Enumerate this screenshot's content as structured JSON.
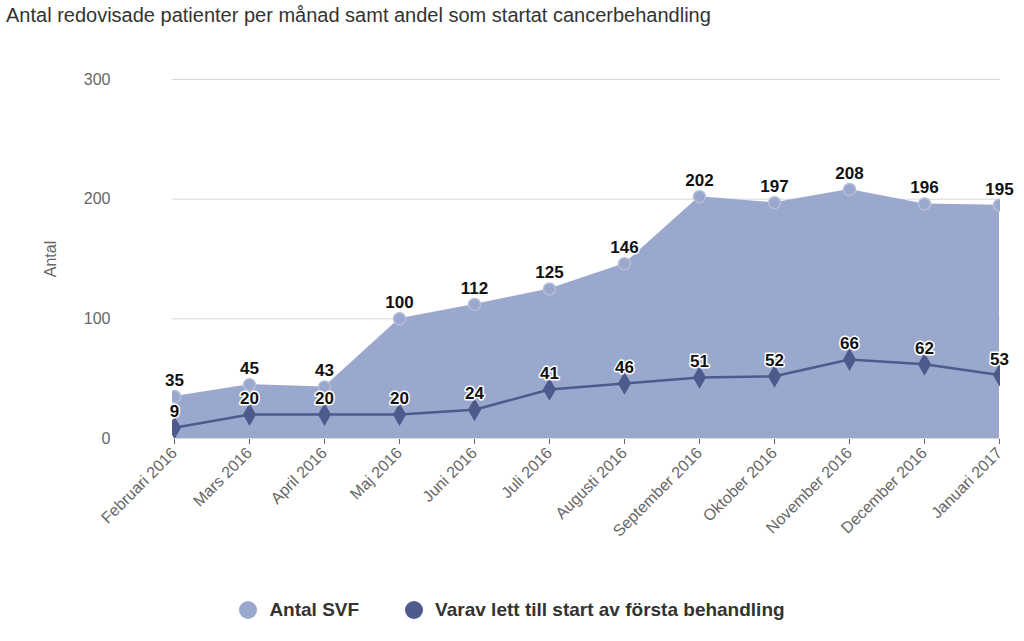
{
  "chart_data": {
    "type": "area",
    "title": "Antal redovisade patienter per månad samt andel som startat cancerbehandling",
    "y_label": "Antal",
    "categories": [
      "Februari 2016",
      "Mars 2016",
      "April 2016",
      "Maj 2016",
      "Juni 2016",
      "Juli 2016",
      "Augusti 2016",
      "September 2016",
      "Oktober 2016",
      "November 2016",
      "December 2016",
      "Januari 2017"
    ],
    "series": [
      {
        "name": "Antal SVF",
        "type": "area",
        "color": "#9ba8cd",
        "marker": "circle",
        "values": [
          35,
          45,
          43,
          100,
          112,
          125,
          146,
          202,
          197,
          208,
          196,
          195
        ]
      },
      {
        "name": "Varav lett till start av första behandling",
        "type": "line",
        "color": "#4f5a8c",
        "marker": "diamond",
        "values": [
          9,
          20,
          20,
          20,
          24,
          41,
          46,
          51,
          52,
          66,
          62,
          53
        ]
      }
    ],
    "ylim": [
      0,
      300
    ],
    "yticks": [
      0,
      100,
      200,
      300
    ],
    "grid": true,
    "data_labels": true,
    "legend": "bottom"
  }
}
